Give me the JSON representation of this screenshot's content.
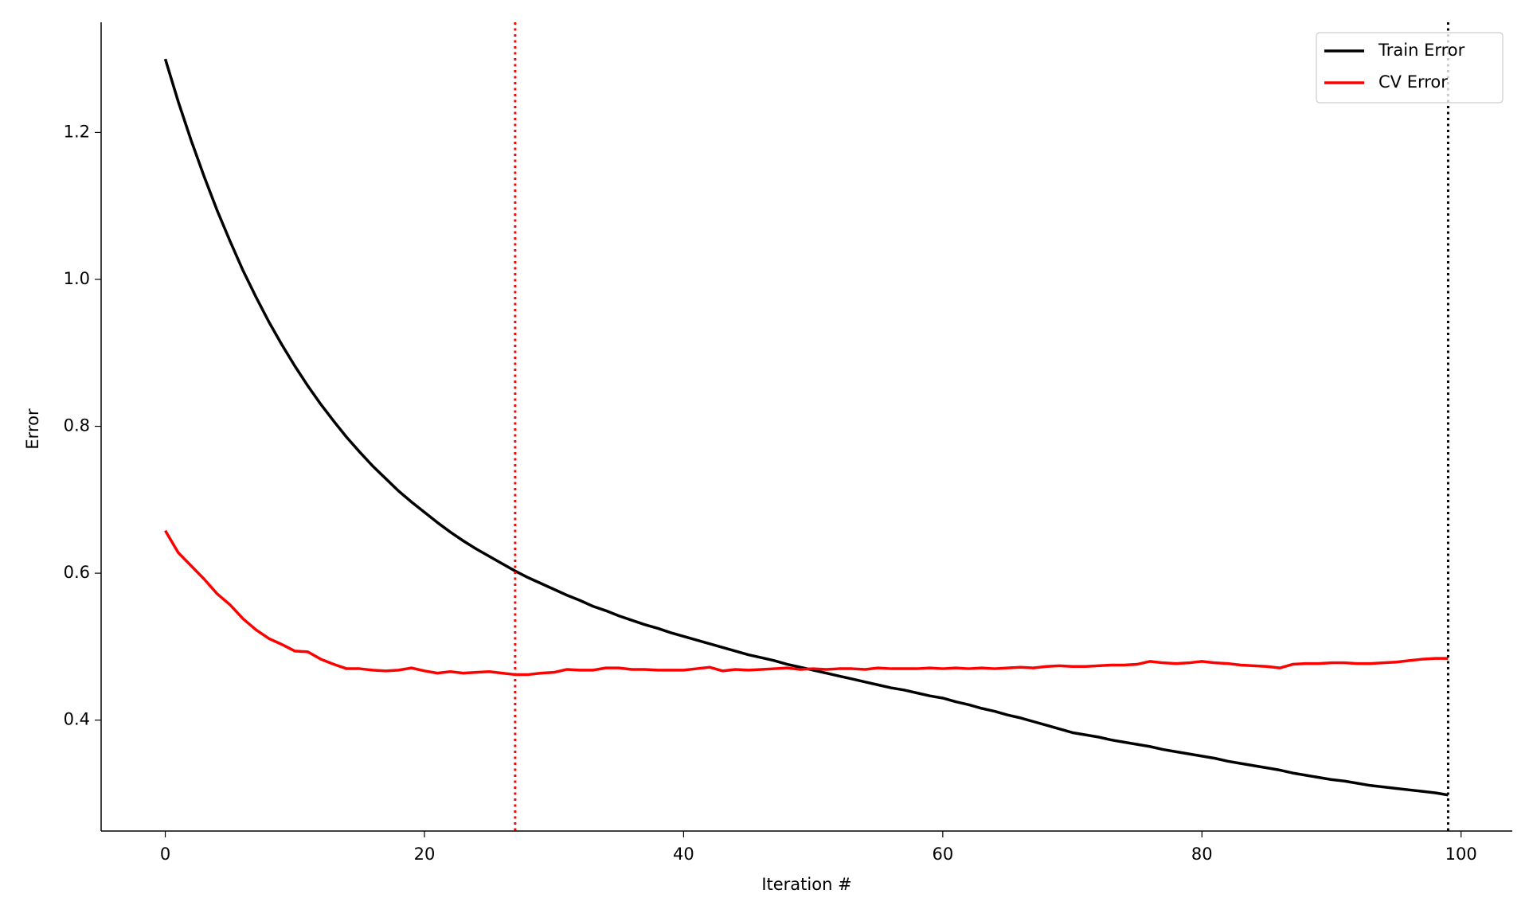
{
  "chart_data": {
    "type": "line",
    "xlabel": "Iteration #",
    "ylabel": "Error",
    "x": [
      0,
      1,
      2,
      3,
      4,
      5,
      6,
      7,
      8,
      9,
      10,
      11,
      12,
      13,
      14,
      15,
      16,
      17,
      18,
      19,
      20,
      21,
      22,
      23,
      24,
      25,
      26,
      27,
      28,
      29,
      30,
      31,
      32,
      33,
      34,
      35,
      36,
      37,
      38,
      39,
      40,
      41,
      42,
      43,
      44,
      45,
      46,
      47,
      48,
      49,
      50,
      51,
      52,
      53,
      54,
      55,
      56,
      57,
      58,
      59,
      60,
      61,
      62,
      63,
      64,
      65,
      66,
      67,
      68,
      69,
      70,
      71,
      72,
      73,
      74,
      75,
      76,
      77,
      78,
      79,
      80,
      81,
      82,
      83,
      84,
      85,
      86,
      87,
      88,
      89,
      90,
      91,
      92,
      93,
      94,
      95,
      96,
      97,
      98,
      99
    ],
    "series": [
      {
        "name": "Train Error",
        "color": "#000000",
        "values": [
          1.3,
          1.242,
          1.189,
          1.14,
          1.094,
          1.052,
          1.012,
          0.976,
          0.942,
          0.911,
          0.882,
          0.855,
          0.83,
          0.807,
          0.785,
          0.765,
          0.746,
          0.729,
          0.712,
          0.697,
          0.683,
          0.669,
          0.656,
          0.644,
          0.633,
          0.623,
          0.613,
          0.603,
          0.594,
          0.586,
          0.578,
          0.57,
          0.563,
          0.555,
          0.549,
          0.542,
          0.536,
          0.53,
          0.525,
          0.519,
          0.514,
          0.509,
          0.504,
          0.499,
          0.494,
          0.489,
          0.485,
          0.481,
          0.476,
          0.472,
          0.468,
          0.464,
          0.46,
          0.456,
          0.452,
          0.448,
          0.444,
          0.441,
          0.437,
          0.433,
          0.43,
          0.425,
          0.421,
          0.416,
          0.412,
          0.407,
          0.403,
          0.398,
          0.393,
          0.388,
          0.383,
          0.38,
          0.377,
          0.373,
          0.37,
          0.367,
          0.364,
          0.36,
          0.357,
          0.354,
          0.351,
          0.348,
          0.344,
          0.341,
          0.338,
          0.335,
          0.332,
          0.328,
          0.325,
          0.322,
          0.319,
          0.317,
          0.314,
          0.311,
          0.309,
          0.307,
          0.305,
          0.303,
          0.301,
          0.298
        ]
      },
      {
        "name": "CV Error",
        "color": "#ff0000",
        "values": [
          0.658,
          0.628,
          0.61,
          0.592,
          0.572,
          0.557,
          0.538,
          0.523,
          0.511,
          0.503,
          0.494,
          0.493,
          0.483,
          0.476,
          0.47,
          0.47,
          0.468,
          0.467,
          0.468,
          0.471,
          0.467,
          0.464,
          0.466,
          0.464,
          0.465,
          0.466,
          0.464,
          0.462,
          0.462,
          0.464,
          0.465,
          0.469,
          0.468,
          0.468,
          0.471,
          0.471,
          0.469,
          0.469,
          0.468,
          0.468,
          0.468,
          0.47,
          0.472,
          0.467,
          0.469,
          0.468,
          0.469,
          0.47,
          0.471,
          0.469,
          0.47,
          0.469,
          0.47,
          0.47,
          0.469,
          0.471,
          0.47,
          0.47,
          0.47,
          0.471,
          0.47,
          0.471,
          0.47,
          0.471,
          0.47,
          0.471,
          0.472,
          0.471,
          0.473,
          0.474,
          0.473,
          0.473,
          0.474,
          0.475,
          0.475,
          0.476,
          0.48,
          0.478,
          0.477,
          0.478,
          0.48,
          0.478,
          0.477,
          0.475,
          0.474,
          0.473,
          0.471,
          0.476,
          0.477,
          0.477,
          0.478,
          0.478,
          0.477,
          0.477,
          0.478,
          0.479,
          0.481,
          0.483,
          0.484,
          0.484
        ]
      }
    ],
    "vlines": [
      {
        "x": 27,
        "color": "#ff0000"
      },
      {
        "x": 99,
        "color": "#000000"
      }
    ],
    "xlim": [
      -4.95,
      103.95
    ],
    "xticks": [
      0,
      20,
      40,
      60,
      80,
      100
    ],
    "ylim": [
      0.249,
      1.35
    ],
    "yticks": [
      0.4,
      0.6,
      0.8,
      {
        "value": 1,
        "label": "1.0"
      },
      1.2
    ],
    "legend": "upper right"
  }
}
